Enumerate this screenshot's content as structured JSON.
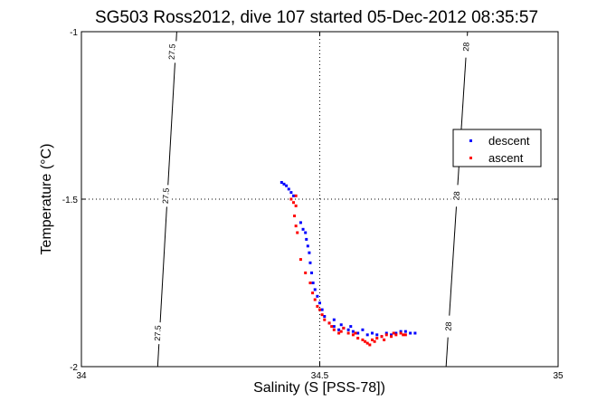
{
  "chart_data": {
    "type": "scatter",
    "title": "SG503 Ross2012, dive 107 started 05-Dec-2012 08:35:57",
    "xlabel": "Salinity (S [PSS-78])",
    "ylabel": "Temperature (°C)",
    "xlim": [
      34,
      35
    ],
    "ylim": [
      -2,
      -1
    ],
    "xticks": [
      "34",
      "34.5",
      "35"
    ],
    "yticks": [
      "-1",
      "-1.5",
      "-2"
    ],
    "grid": "dotted at 34.5 and -1.5",
    "legend_position": "right",
    "contours": [
      {
        "label": "27.5",
        "points": [
          [
            34.2,
            -1.0
          ],
          [
            34.16,
            -2.0
          ]
        ],
        "label_positions": [
          [
            34.19,
            -1.06
          ],
          [
            34.177,
            -1.49
          ],
          [
            34.16,
            -1.9
          ]
        ]
      },
      {
        "label": "28",
        "points": [
          [
            34.81,
            -1.0
          ],
          [
            34.765,
            -2.0
          ]
        ],
        "label_positions": [
          [
            34.807,
            -1.045
          ],
          [
            34.787,
            -1.49
          ],
          [
            34.77,
            -1.88
          ]
        ]
      }
    ],
    "series": [
      {
        "name": "descent",
        "color": "#0000ff",
        "points": [
          [
            34.42,
            -1.45
          ],
          [
            34.425,
            -1.455
          ],
          [
            34.43,
            -1.46
          ],
          [
            34.435,
            -1.47
          ],
          [
            34.44,
            -1.48
          ],
          [
            34.445,
            -1.49
          ],
          [
            34.46,
            -1.57
          ],
          [
            34.465,
            -1.59
          ],
          [
            34.47,
            -1.6
          ],
          [
            34.472,
            -1.62
          ],
          [
            34.475,
            -1.64
          ],
          [
            34.478,
            -1.66
          ],
          [
            34.48,
            -1.69
          ],
          [
            34.483,
            -1.72
          ],
          [
            34.486,
            -1.75
          ],
          [
            34.49,
            -1.77
          ],
          [
            34.495,
            -1.79
          ],
          [
            34.5,
            -1.81
          ],
          [
            34.505,
            -1.83
          ],
          [
            34.51,
            -1.85
          ],
          [
            34.52,
            -1.87
          ],
          [
            34.53,
            -1.88
          ],
          [
            34.54,
            -1.89
          ],
          [
            34.55,
            -1.885
          ],
          [
            34.56,
            -1.89
          ],
          [
            34.57,
            -1.895
          ],
          [
            34.58,
            -1.9
          ],
          [
            34.6,
            -1.905
          ],
          [
            34.62,
            -1.905
          ],
          [
            34.64,
            -1.9
          ],
          [
            34.66,
            -1.9
          ],
          [
            34.68,
            -1.895
          ],
          [
            34.69,
            -1.9
          ],
          [
            34.7,
            -1.9
          ],
          [
            34.53,
            -1.86
          ],
          [
            34.545,
            -1.875
          ],
          [
            34.565,
            -1.88
          ],
          [
            34.59,
            -1.89
          ],
          [
            34.61,
            -1.9
          ],
          [
            34.63,
            -1.91
          ],
          [
            34.65,
            -1.905
          ],
          [
            34.67,
            -1.895
          ]
        ]
      },
      {
        "name": "ascent",
        "color": "#ff0000",
        "points": [
          [
            34.44,
            -1.5
          ],
          [
            34.445,
            -1.51
          ],
          [
            34.45,
            -1.49
          ],
          [
            34.45,
            -1.52
          ],
          [
            34.447,
            -1.55
          ],
          [
            34.45,
            -1.58
          ],
          [
            34.453,
            -1.6
          ],
          [
            34.46,
            -1.68
          ],
          [
            34.47,
            -1.72
          ],
          [
            34.48,
            -1.75
          ],
          [
            34.485,
            -1.78
          ],
          [
            34.49,
            -1.8
          ],
          [
            34.495,
            -1.82
          ],
          [
            34.5,
            -1.83
          ],
          [
            34.505,
            -1.845
          ],
          [
            34.51,
            -1.86
          ],
          [
            34.52,
            -1.87
          ],
          [
            34.525,
            -1.88
          ],
          [
            34.53,
            -1.89
          ],
          [
            34.54,
            -1.9
          ],
          [
            34.55,
            -1.885
          ],
          [
            34.56,
            -1.9
          ],
          [
            34.57,
            -1.905
          ],
          [
            34.58,
            -1.915
          ],
          [
            34.59,
            -1.92
          ],
          [
            34.6,
            -1.93
          ],
          [
            34.605,
            -1.935
          ],
          [
            34.61,
            -1.92
          ],
          [
            34.62,
            -1.915
          ],
          [
            34.63,
            -1.91
          ],
          [
            34.64,
            -1.905
          ],
          [
            34.65,
            -1.91
          ],
          [
            34.66,
            -1.905
          ],
          [
            34.67,
            -1.9
          ],
          [
            34.68,
            -1.905
          ],
          [
            34.545,
            -1.895
          ],
          [
            34.575,
            -1.9
          ],
          [
            34.595,
            -1.925
          ],
          [
            34.615,
            -1.925
          ],
          [
            34.635,
            -1.92
          ],
          [
            34.655,
            -1.9
          ],
          [
            34.675,
            -1.905
          ]
        ]
      }
    ]
  }
}
